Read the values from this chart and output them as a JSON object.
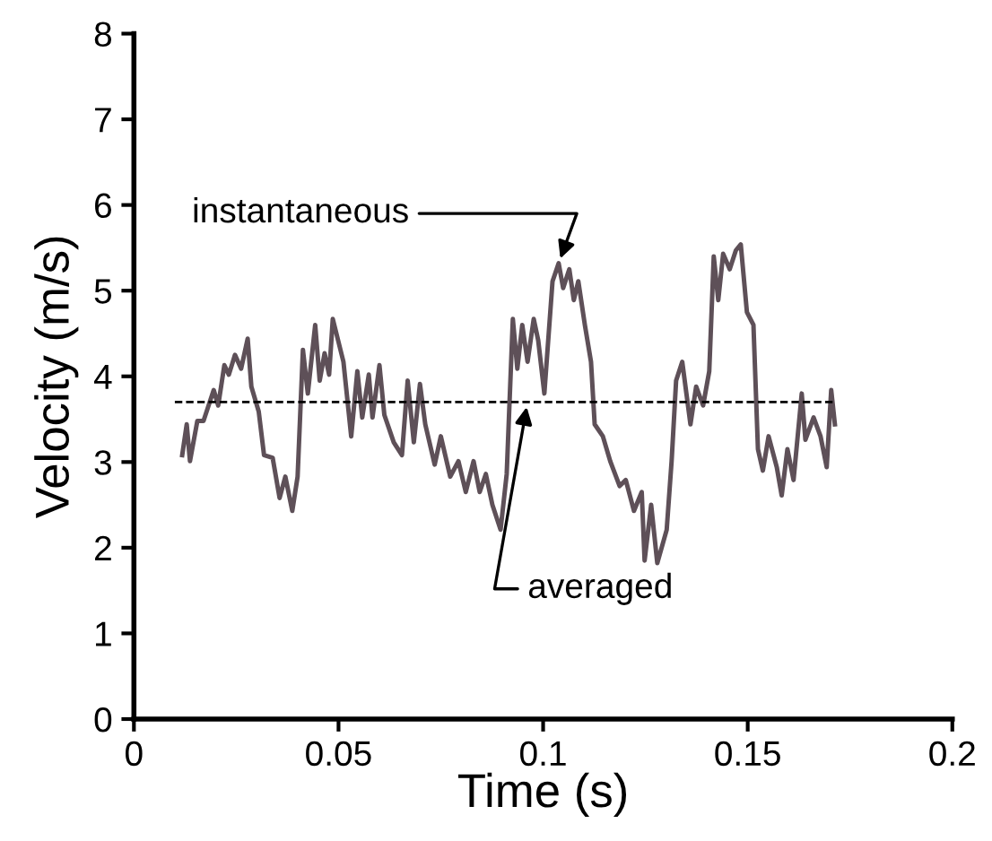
{
  "chart_data": {
    "type": "line",
    "xlabel": "Time (s)",
    "ylabel": "Velocity (m/s)",
    "xlim": [
      0,
      0.2
    ],
    "xticks": [
      0,
      0.05,
      0.1,
      0.15,
      0.2
    ],
    "ylim": [
      0,
      8
    ],
    "yticks": [
      0,
      1,
      2,
      3,
      4,
      5,
      6,
      7,
      8
    ],
    "grid": false,
    "legend": false,
    "marker": "none",
    "series": [
      {
        "color": "#5e5058",
        "line_style": "solid",
        "x": [
          0.0118,
          0.0129,
          0.0137,
          0.0155,
          0.017,
          0.0195,
          0.0206,
          0.0221,
          0.0232,
          0.0247,
          0.0262,
          0.0278,
          0.0287,
          0.0305,
          0.0318,
          0.0339,
          0.0356,
          0.037,
          0.0387,
          0.04,
          0.0413,
          0.0425,
          0.0443,
          0.0454,
          0.0466,
          0.0477,
          0.0486,
          0.0512,
          0.0531,
          0.0546,
          0.0558,
          0.0574,
          0.0583,
          0.06,
          0.0612,
          0.0635,
          0.0655,
          0.0669,
          0.0684,
          0.0699,
          0.0712,
          0.0735,
          0.075,
          0.0773,
          0.0793,
          0.0811,
          0.083,
          0.0845,
          0.086,
          0.0876,
          0.0896,
          0.0911,
          0.0926,
          0.0937,
          0.0949,
          0.0962,
          0.0977,
          0.0988,
          0.1003,
          0.1023,
          0.1038,
          0.1049,
          0.1064,
          0.1075,
          0.1086,
          0.1102,
          0.1117,
          0.1126,
          0.1146,
          0.1164,
          0.1187,
          0.1202,
          0.1222,
          0.1241,
          0.1248,
          0.1264,
          0.1279,
          0.1302,
          0.1314,
          0.1325,
          0.134,
          0.136,
          0.1374,
          0.1391,
          0.1406,
          0.1417,
          0.1428,
          0.144,
          0.1456,
          0.1471,
          0.1483,
          0.1498,
          0.1514,
          0.1525,
          0.1537,
          0.1551,
          0.1571,
          0.1583,
          0.1597,
          0.1612,
          0.1632,
          0.1641,
          0.1661,
          0.1678,
          0.1693,
          0.1704,
          0.1713
        ],
        "values": [
          3.08,
          3.44,
          3.01,
          3.48,
          3.48,
          3.84,
          3.66,
          4.13,
          4.02,
          4.25,
          4.09,
          4.44,
          3.88,
          3.59,
          3.08,
          3.05,
          2.58,
          2.83,
          2.43,
          2.83,
          4.31,
          3.8,
          4.6,
          3.95,
          4.27,
          4.02,
          4.67,
          4.17,
          3.3,
          4.06,
          3.52,
          4.02,
          3.52,
          4.13,
          3.55,
          3.23,
          3.08,
          3.95,
          3.23,
          3.91,
          3.44,
          2.97,
          3.3,
          2.83,
          3.01,
          2.65,
          3.01,
          2.65,
          2.86,
          2.5,
          2.21,
          2.86,
          4.67,
          4.09,
          4.6,
          4.17,
          4.67,
          4.42,
          3.8,
          5.11,
          5.32,
          5.03,
          5.25,
          4.89,
          5.11,
          4.6,
          4.17,
          3.44,
          3.3,
          3.01,
          2.72,
          2.79,
          2.43,
          2.65,
          1.85,
          2.5,
          1.82,
          2.21,
          3.01,
          3.95,
          4.17,
          3.44,
          3.88,
          3.66,
          4.06,
          5.4,
          4.89,
          5.43,
          5.25,
          5.47,
          5.54,
          4.75,
          4.6,
          3.15,
          2.9,
          3.3,
          2.94,
          2.61,
          3.15,
          2.79,
          3.8,
          3.26,
          3.52,
          3.3,
          2.94,
          3.84,
          3.44
        ]
      },
      {
        "color": "#000000",
        "line_style": "dashed",
        "x": [
          0.01,
          0.1715
        ],
        "values": [
          3.7,
          3.7
        ]
      }
    ],
    "annotations": [
      {
        "text": "instantaneous",
        "x": 0.1038,
        "y": 5.32
      },
      {
        "text": "averaged",
        "x": 0.0962,
        "y": 3.7
      }
    ]
  }
}
